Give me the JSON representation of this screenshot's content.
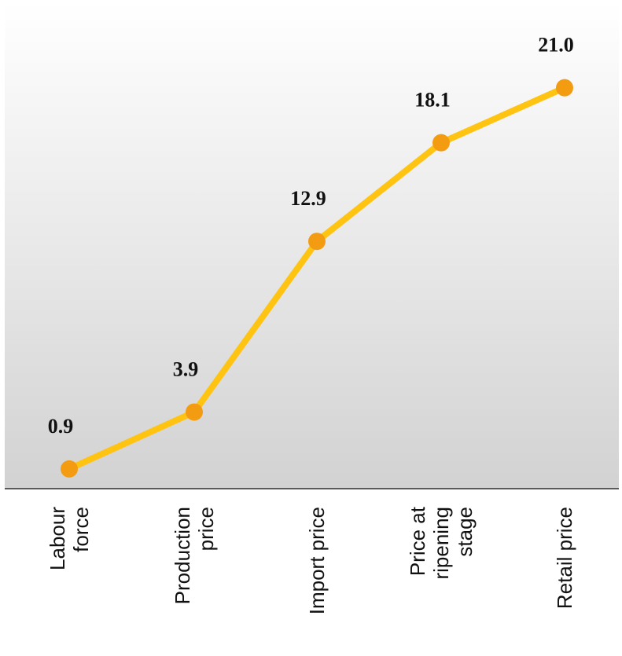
{
  "chart_data": {
    "type": "line",
    "categories": [
      [
        "Labour",
        "force"
      ],
      [
        "Production",
        "price"
      ],
      [
        "Import price"
      ],
      [
        "Price at",
        "ripening",
        "stage"
      ],
      [
        "Retail price"
      ]
    ],
    "values": [
      0.9,
      3.9,
      12.9,
      18.1,
      21.0
    ],
    "data_labels": [
      "0.9",
      "3.9",
      "12.9",
      "18.1",
      "21.0"
    ],
    "ylim": [
      0,
      25
    ],
    "grid": false,
    "legend": "none",
    "colors": {
      "line": "#FFC312",
      "marker": "#F39C12",
      "plot_bg_top": "#ffffff",
      "plot_bg_bottom": "#d2d2d2",
      "axis": "#5a5a5a",
      "text": "#111111"
    }
  }
}
